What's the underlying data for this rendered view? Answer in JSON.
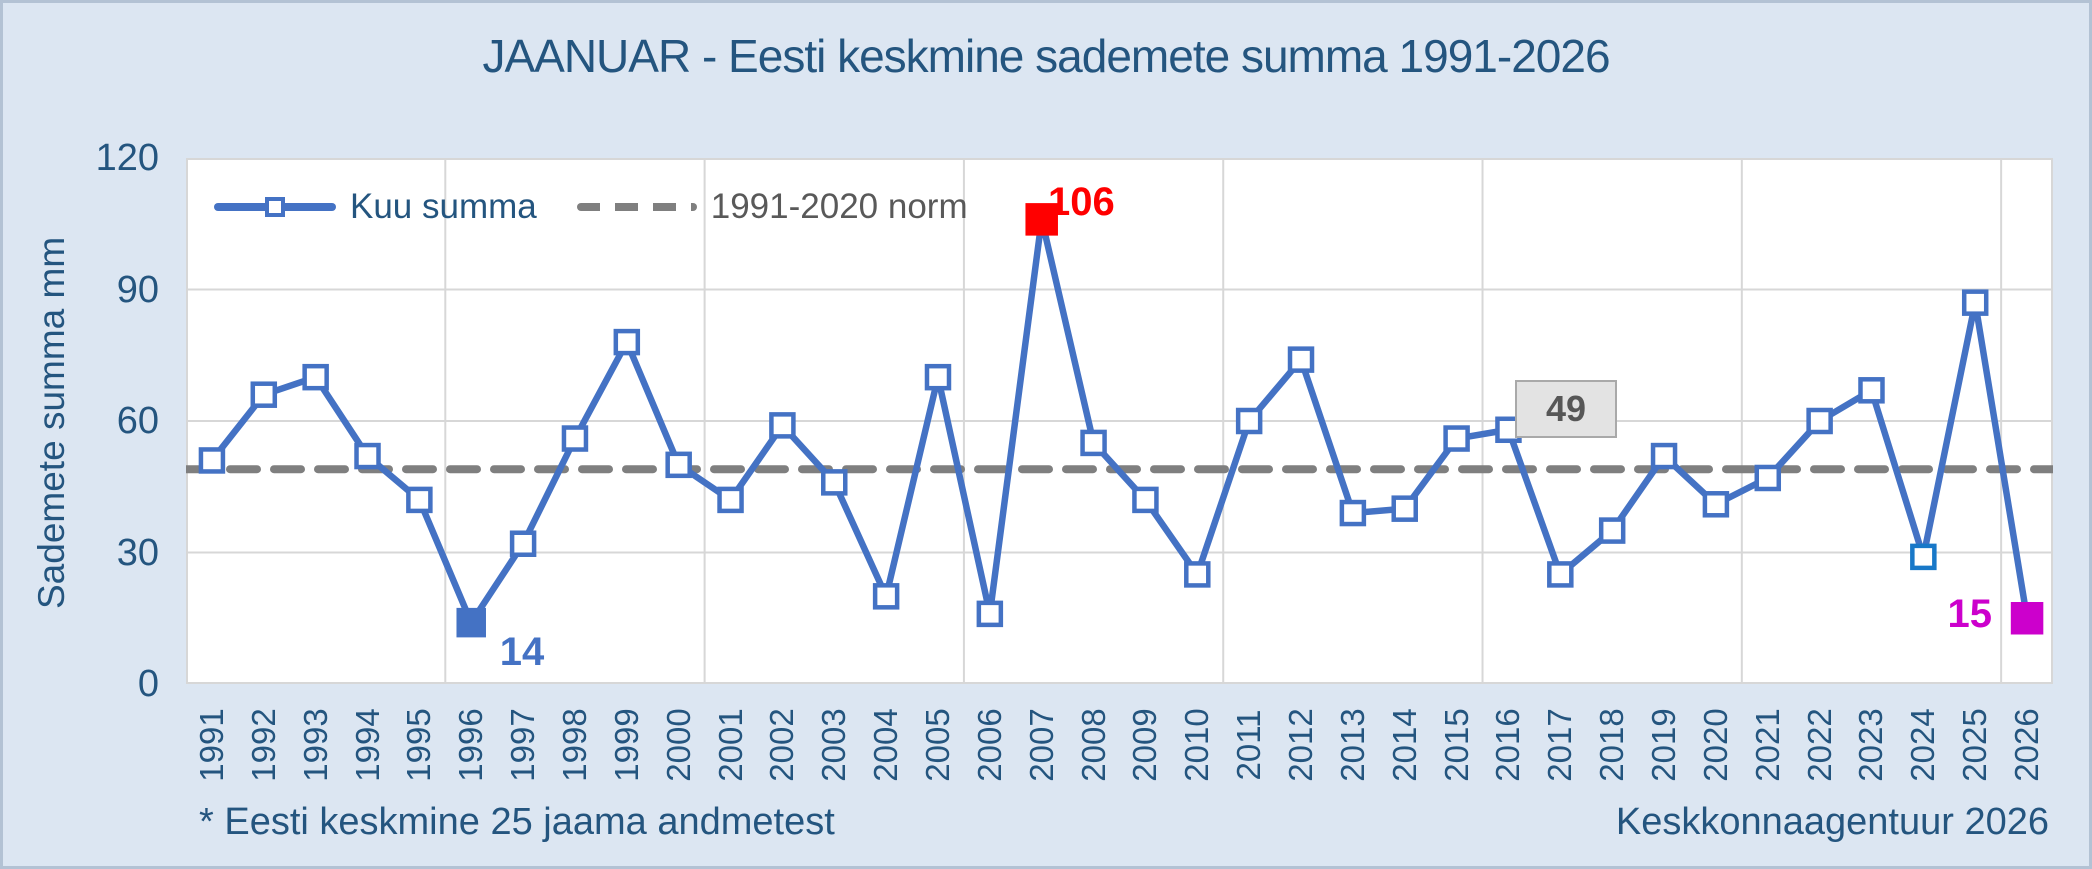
{
  "title": "JAANUAR - Eesti keskmine sademete summa 1991-2026",
  "y_axis_title": "Sademete summa mm",
  "legend": {
    "series": "Kuu summa",
    "norm": "1991-2020 norm"
  },
  "annotations": {
    "y1996": "14",
    "y2007": "106",
    "y2026": "15",
    "norm_box": "49"
  },
  "footnotes": {
    "left": "* Eesti keskmine 25 jaama andmetest",
    "right": "Keskkonnaagentuur 2026"
  },
  "colors": {
    "background": "#dce6f2",
    "frame_border": "#b3c2d4",
    "plot_bg": "#ffffff",
    "gridline": "#d7d7d7",
    "series_line": "#4472c4",
    "norm_line": "#7f7f7f",
    "title_text": "#24557f",
    "axis_text": "#24557f",
    "norm_text": "#595959",
    "annotation_red": "#ff0000",
    "annotation_blue": "#4472c4",
    "annotation_magenta": "#cc00cc",
    "marker_2024_border": "#1878c8",
    "norm_box_bg": "#e3e3e3",
    "norm_box_border": "#a9a9a9",
    "norm_box_text": "#575757"
  },
  "chart_data": {
    "type": "line",
    "x": [
      1991,
      1992,
      1993,
      1994,
      1995,
      1996,
      1997,
      1998,
      1999,
      2000,
      2001,
      2002,
      2003,
      2004,
      2005,
      2006,
      2007,
      2008,
      2009,
      2010,
      2011,
      2012,
      2013,
      2014,
      2015,
      2016,
      2017,
      2018,
      2019,
      2020,
      2021,
      2022,
      2023,
      2024,
      2025,
      2026
    ],
    "series": [
      {
        "name": "Kuu summa",
        "values": [
          51,
          66,
          70,
          52,
          42,
          14,
          32,
          56,
          78,
          50,
          42,
          59,
          46,
          20,
          70,
          16,
          106,
          55,
          42,
          25,
          60,
          74,
          39,
          40,
          56,
          58,
          25,
          35,
          52,
          41,
          47,
          60,
          67,
          29,
          87,
          15
        ]
      }
    ],
    "norm_value": 49,
    "ylim": [
      0,
      120
    ],
    "yticks": [
      0,
      30,
      60,
      90,
      120
    ],
    "ylabel": "Sademete summa mm",
    "xlabel": "",
    "x_gridline_every": 5,
    "grid": true,
    "legend_position": "top-left-inside",
    "special_markers": {
      "1996": {
        "style": "filled-blue",
        "label": "14"
      },
      "2007": {
        "style": "filled-red",
        "label": "106"
      },
      "2024": {
        "style": "outline-bright-blue"
      },
      "2026": {
        "style": "filled-magenta",
        "label": "15"
      }
    }
  }
}
